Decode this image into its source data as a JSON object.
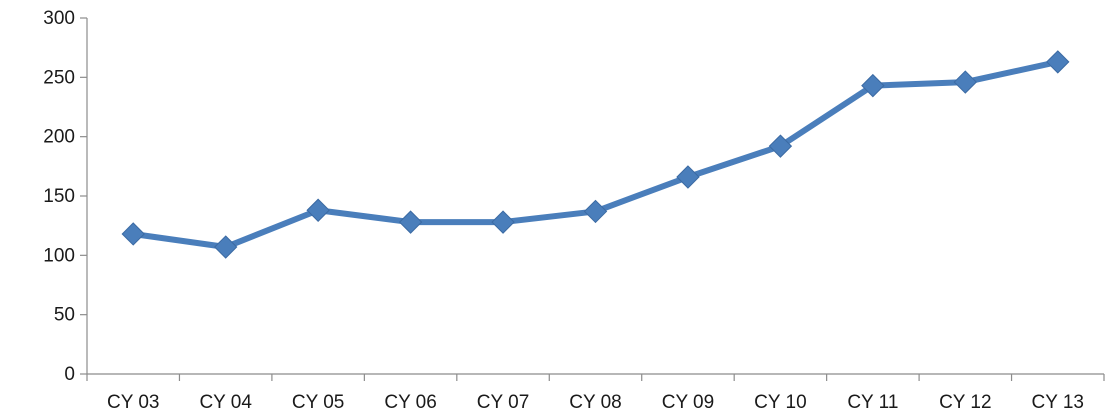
{
  "chart_data": {
    "type": "line",
    "title": "",
    "xlabel": "",
    "ylabel": "",
    "categories": [
      "CY 03",
      "CY 04",
      "CY 05",
      "CY 06",
      "CY 07",
      "CY 08",
      "CY 09",
      "CY 10",
      "CY 11",
      "CY 12",
      "CY 13"
    ],
    "series": [
      {
        "values": [
          118,
          107,
          138,
          128,
          128,
          137,
          166,
          192,
          243,
          246,
          263
        ],
        "color": "#4a7ebb"
      }
    ],
    "ylim": [
      0,
      300
    ],
    "yticks": [
      "0",
      "50",
      "100",
      "150",
      "200",
      "250",
      "300"
    ],
    "grid": false,
    "legend": "none",
    "axis_color": "#8c8c8c",
    "marker": "diamond"
  }
}
